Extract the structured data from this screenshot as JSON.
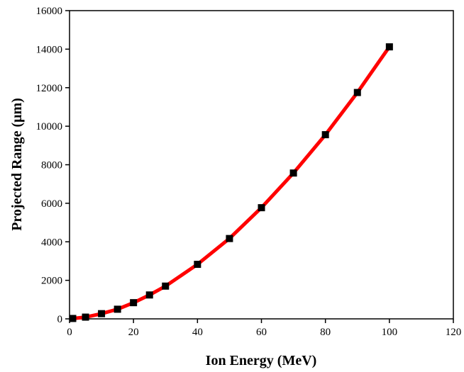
{
  "chart_data": {
    "type": "line",
    "title": "",
    "xlabel": "Ion Energy (MeV)",
    "ylabel": "Projected Range (μm)",
    "xlim": [
      0,
      120
    ],
    "ylim": [
      0,
      16000
    ],
    "x_ticks": [
      0,
      20,
      40,
      60,
      80,
      100,
      120
    ],
    "y_ticks": [
      0,
      2000,
      4000,
      6000,
      8000,
      10000,
      12000,
      14000,
      16000
    ],
    "grid": false,
    "legend": "none",
    "line_color": "#ff0000",
    "marker_color": "#000000",
    "marker": "square",
    "series": [
      {
        "x": [
          1,
          5,
          10,
          15,
          20,
          25,
          30,
          40,
          50,
          60,
          70,
          80,
          90,
          100
        ],
        "y": [
          20,
          90,
          270,
          500,
          840,
          1240,
          1700,
          2830,
          4170,
          5770,
          7570,
          9560,
          11750,
          14120
        ]
      }
    ]
  }
}
